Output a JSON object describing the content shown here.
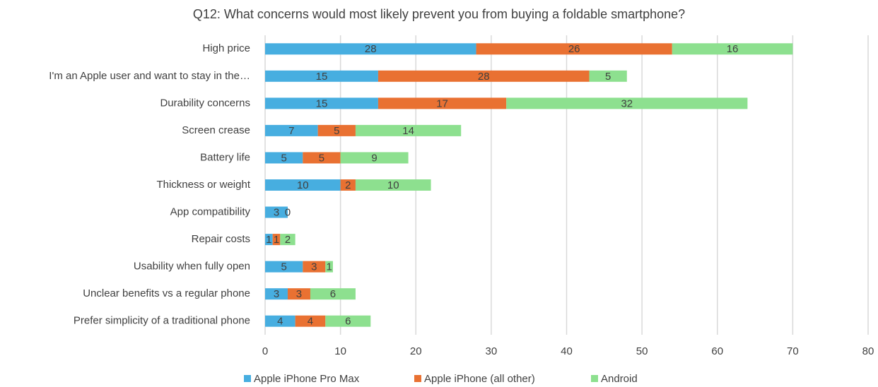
{
  "chart_data": {
    "type": "stacked_barh",
    "title": "Q12: What concerns would most likely prevent you from buying a foldable smartphone?",
    "categories": [
      "High price",
      "I'm an Apple user and want to stay in the…",
      "Durability concerns",
      "Screen crease",
      "Battery life",
      "Thickness or weight",
      "App compatibility",
      "Repair costs",
      "Usability when fully open",
      "Unclear benefits vs a regular phone",
      "Prefer simplicity of a traditional phone"
    ],
    "series": [
      {
        "name": "Apple iPhone Pro Max",
        "color": "#47aee0",
        "values": [
          28,
          15,
          15,
          7,
          5,
          10,
          3,
          1,
          5,
          3,
          4
        ]
      },
      {
        "name": "Apple iPhone (all other)",
        "color": "#e97132",
        "values": [
          26,
          28,
          17,
          5,
          5,
          2,
          0,
          1,
          3,
          3,
          4
        ]
      },
      {
        "name": "Android",
        "color": "#8de08f",
        "values": [
          16,
          5,
          32,
          14,
          9,
          10,
          null,
          2,
          1,
          6,
          6
        ]
      }
    ],
    "xlim": [
      0,
      80
    ],
    "xticks": [
      0,
      10,
      20,
      30,
      40,
      50,
      60,
      70,
      80
    ],
    "grid": true,
    "legend": "bottom"
  }
}
